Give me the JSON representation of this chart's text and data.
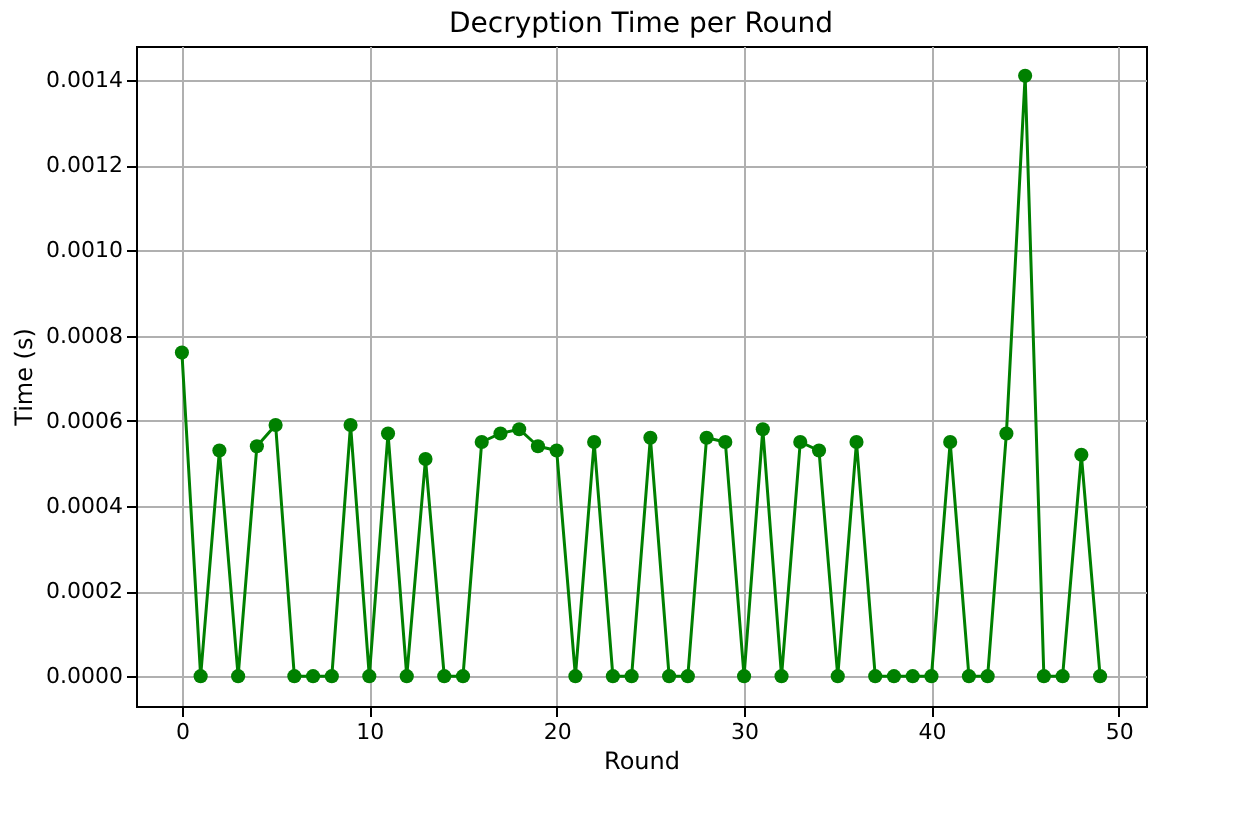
{
  "chart_data": {
    "type": "line",
    "title": "Decryption Time per Round",
    "xlabel": "Round",
    "ylabel": "Time (s)",
    "x": [
      0,
      1,
      2,
      3,
      4,
      5,
      6,
      7,
      8,
      9,
      10,
      11,
      12,
      13,
      14,
      15,
      16,
      17,
      18,
      19,
      20,
      21,
      22,
      23,
      24,
      25,
      26,
      27,
      28,
      29,
      30,
      31,
      32,
      33,
      34,
      35,
      36,
      37,
      38,
      39,
      40,
      41,
      42,
      43,
      44,
      45,
      46,
      47,
      48,
      49
    ],
    "series": [
      {
        "color": "#008000",
        "values": [
          0.00076,
          0,
          0.00053,
          0,
          0.00054,
          0.00059,
          0,
          0,
          0,
          0.00059,
          0,
          0.00057,
          0,
          0.00051,
          0,
          0,
          0.00055,
          0.00057,
          0.00058,
          0.00054,
          0.00053,
          0,
          0.00055,
          0,
          0,
          0.00056,
          0,
          0,
          0.00056,
          0.00055,
          0,
          0.00058,
          0,
          0.00055,
          0.00053,
          0,
          0.00055,
          0,
          0,
          0,
          0,
          0.00055,
          0,
          0,
          0.00057,
          0.00141,
          0,
          0,
          0.00052,
          0
        ]
      }
    ],
    "xlim": [
      -2.45,
      51.45
    ],
    "xticks": [
      0,
      10,
      20,
      30,
      40,
      50
    ],
    "ylim": [
      -7e-05,
      0.00148
    ],
    "yticks": [
      {
        "value": 0,
        "label": "0.0000"
      },
      {
        "value": 0.0002,
        "label": "0.0002"
      },
      {
        "value": 0.0004,
        "label": "0.0004"
      },
      {
        "value": 0.0006,
        "label": "0.0006"
      },
      {
        "value": 0.0008,
        "label": "0.0008"
      },
      {
        "value": 0.001,
        "label": "0.0010"
      },
      {
        "value": 0.0012,
        "label": "0.0012"
      },
      {
        "value": 0.0014,
        "label": "0.0014"
      }
    ],
    "grid": true,
    "marker": "circle",
    "line_style": "solid"
  }
}
